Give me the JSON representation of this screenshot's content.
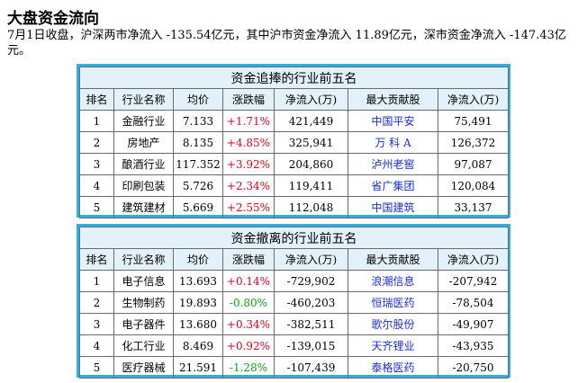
{
  "title": "大盘资金流向",
  "summary": "7月1日收盘，沪深两市净流入 -135.54亿元，其中沪市资金净流入 11.89亿元，深市资金净流入 -147.43亿元。",
  "colors": {
    "frame": "#2bb1e8",
    "header_bg": "#e2f1fa",
    "up": "#e0001b",
    "down": "#12a012",
    "link": "#1a2fc9"
  },
  "inflow_table": {
    "caption": "资金追捧的行业前五名",
    "headers": [
      "排名",
      "行业名称",
      "均价",
      "涨跌幅",
      "净流入(万)",
      "最大贡献股",
      "净流入(万)"
    ],
    "rows": [
      {
        "rank": "1",
        "industry": "金融行业",
        "avg_price": "7.133",
        "change": "+1.71%",
        "trend": "up",
        "net_inflow": "421,449",
        "top_stock": "中国平安",
        "stock_inflow": "75,491"
      },
      {
        "rank": "2",
        "industry": "房地产",
        "avg_price": "8.135",
        "change": "+4.85%",
        "trend": "up",
        "net_inflow": "325,941",
        "top_stock": "万 科 A",
        "stock_inflow": "126,372"
      },
      {
        "rank": "3",
        "industry": "酿酒行业",
        "avg_price": "117.352",
        "change": "+3.92%",
        "trend": "up",
        "net_inflow": "204,860",
        "top_stock": "泸州老窖",
        "stock_inflow": "97,087"
      },
      {
        "rank": "4",
        "industry": "印刷包装",
        "avg_price": "5.726",
        "change": "+2.34%",
        "trend": "up",
        "net_inflow": "119,411",
        "top_stock": "省广集团",
        "stock_inflow": "120,084"
      },
      {
        "rank": "5",
        "industry": "建筑建材",
        "avg_price": "5.669",
        "change": "+2.55%",
        "trend": "up",
        "net_inflow": "112,048",
        "top_stock": "中国建筑",
        "stock_inflow": "33,137"
      }
    ]
  },
  "outflow_table": {
    "caption": "资金撤离的行业前五名",
    "headers": [
      "排名",
      "行业名称",
      "均价",
      "涨跌幅",
      "净流入(万)",
      "最大贡献股",
      "净流入(万)"
    ],
    "rows": [
      {
        "rank": "1",
        "industry": "电子信息",
        "avg_price": "13.693",
        "change": "+0.14%",
        "trend": "up",
        "net_inflow": "-729,902",
        "top_stock": "浪潮信息",
        "stock_inflow": "-207,942"
      },
      {
        "rank": "2",
        "industry": "生物制药",
        "avg_price": "19.893",
        "change": "-0.80%",
        "trend": "down",
        "net_inflow": "-460,203",
        "top_stock": "恒瑞医药",
        "stock_inflow": "-78,504"
      },
      {
        "rank": "3",
        "industry": "电子器件",
        "avg_price": "13.680",
        "change": "+0.34%",
        "trend": "up",
        "net_inflow": "-382,511",
        "top_stock": "歌尔股份",
        "stock_inflow": "-49,907"
      },
      {
        "rank": "4",
        "industry": "化工行业",
        "avg_price": "8.469",
        "change": "+0.92%",
        "trend": "up",
        "net_inflow": "-139,015",
        "top_stock": "天齐锂业",
        "stock_inflow": "-43,935"
      },
      {
        "rank": "5",
        "industry": "医疗器械",
        "avg_price": "21.591",
        "change": "-1.28%",
        "trend": "down",
        "net_inflow": "-107,439",
        "top_stock": "泰格医药",
        "stock_inflow": "-20,750"
      }
    ]
  }
}
